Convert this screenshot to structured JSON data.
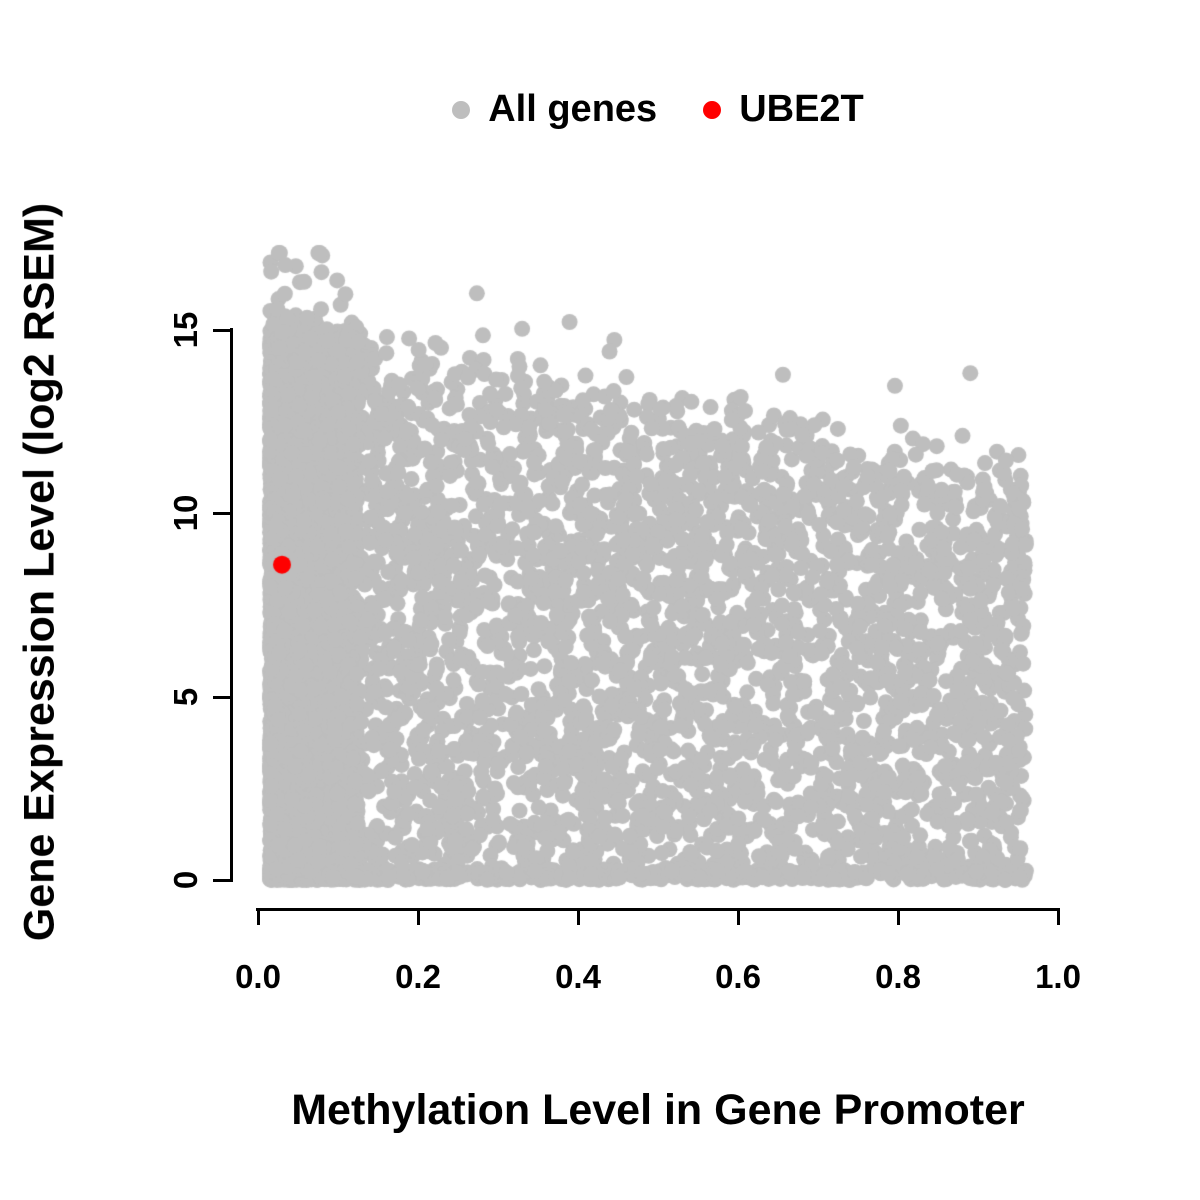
{
  "figure": {
    "background": "#FFFFFF"
  },
  "legend": {
    "items": [
      {
        "label": "All genes",
        "color": "#BEBEBE",
        "marker": "filled-circle"
      },
      {
        "label": "UBE2T",
        "color": "#FF0000",
        "marker": "filled-circle"
      }
    ]
  },
  "chart_data": {
    "type": "scatter",
    "title": "",
    "xlabel": "Methylation Level in Gene Promoter",
    "ylabel": "Gene Expression Level (log2 RSEM)",
    "xlim": [
      0,
      1.05
    ],
    "ylim": [
      0,
      17.5
    ],
    "grid": false,
    "legend_position": "top-center",
    "x_tick_labels": [
      "0.0",
      "0.2",
      "0.4",
      "0.6",
      "0.8",
      "1.0"
    ],
    "x_tick_values": [
      0,
      0.2,
      0.4,
      0.6,
      0.8,
      1.0
    ],
    "y_tick_labels": [
      "0",
      "5",
      "10",
      "15"
    ],
    "y_tick_values": [
      0,
      5,
      10,
      15
    ],
    "series": [
      {
        "name": "All genes",
        "color": "#BEBEBE",
        "marker_radius_px": 8,
        "representation": "dense-cloud",
        "n_points": 8200,
        "seed": 42,
        "x_range": [
          0.015,
          0.96
        ],
        "left_band_fraction": 0.42,
        "left_band_width": 0.11,
        "x_spread_exponent": 1.25,
        "y_cap_at_x0": 15.0,
        "y_cap_at_x1": 10.8,
        "y_cap_noise": 1.6,
        "bottom_line_fraction": 0.1,
        "bottom_line_max_y": 0.3,
        "y_outlier_fraction": 0.005,
        "y_outlier_extra": 2.8,
        "y_outlier_max": 17.1
      },
      {
        "name": "UBE2T",
        "color": "#FF0000",
        "marker_radius_px": 9,
        "points": [
          [
            0.03,
            8.6
          ]
        ]
      }
    ]
  }
}
